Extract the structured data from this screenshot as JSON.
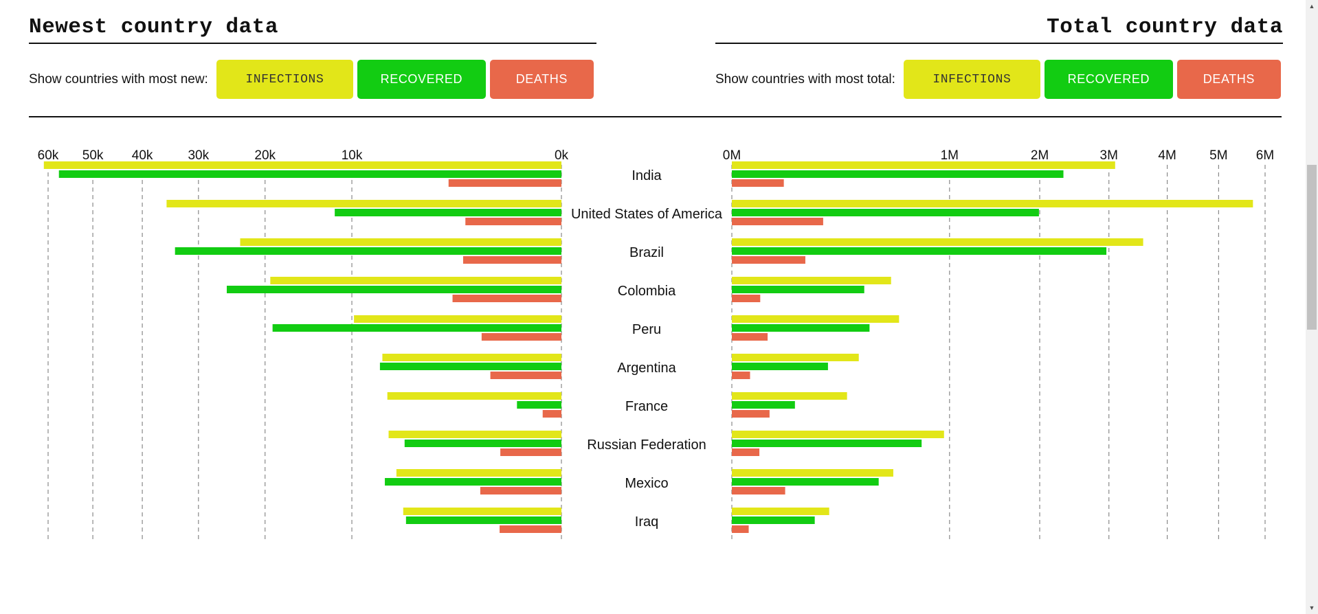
{
  "left_panel": {
    "title": "Newest country data",
    "filter_label": "Show countries with most new:",
    "buttons": {
      "infections": "INFECTIONS",
      "recovered": "RECOVERED",
      "deaths": "DEATHS"
    }
  },
  "right_panel": {
    "title": "Total country data",
    "filter_label": "Show countries with most total:",
    "buttons": {
      "infections": "INFECTIONS",
      "recovered": "RECOVERED",
      "deaths": "DEATHS"
    }
  },
  "colors": {
    "infections": "#e2e619",
    "recovered": "#12cc12",
    "deaths": "#e8684a",
    "grid": "#888888"
  },
  "chart_data": [
    {
      "type": "bar",
      "orientation": "horizontal",
      "direction": "right-to-left",
      "title": "Newest country data",
      "categories": [
        "India",
        "United States of America",
        "Brazil",
        "Colombia",
        "Peru",
        "Argentina",
        "France",
        "Russian Federation",
        "Mexico",
        "Iraq"
      ],
      "series": [
        {
          "name": "INFECTIONS",
          "values": [
            61000,
            35500,
            23500,
            19300,
            9800,
            7300,
            6900,
            6800,
            6200,
            5700
          ]
        },
        {
          "name": "RECOVERED",
          "values": [
            57500,
            11700,
            34000,
            25500,
            19000,
            7500,
            450,
            5600,
            7100,
            5500
          ]
        },
        {
          "name": "DEATHS",
          "values": [
            2900,
            2100,
            2200,
            2700,
            1450,
            1150,
            80,
            850,
            1500,
            870
          ]
        }
      ],
      "xscale": "sqrt",
      "xlim": [
        0,
        60000
      ],
      "ticks": [
        0,
        10000,
        20000,
        30000,
        40000,
        50000,
        60000
      ],
      "tick_labels": [
        "0k",
        "10k",
        "20k",
        "30k",
        "40k",
        "50k",
        "60k"
      ],
      "grid": true
    },
    {
      "type": "bar",
      "orientation": "horizontal",
      "direction": "left-to-right",
      "title": "Total country data",
      "categories": [
        "India",
        "United States of America",
        "Brazil",
        "Colombia",
        "Peru",
        "Argentina",
        "France",
        "Russian Federation",
        "Mexico",
        "Iraq"
      ],
      "series": [
        {
          "name": "INFECTIONS",
          "values": [
            3100000,
            5730000,
            3570000,
            535000,
            590000,
            340000,
            280000,
            950000,
            550000,
            200000
          ]
        },
        {
          "name": "RECOVERED",
          "values": [
            2320000,
            1990000,
            2960000,
            370000,
            400000,
            195000,
            84000,
            760000,
            455000,
            145000
          ]
        },
        {
          "name": "DEATHS",
          "values": [
            57000,
            176000,
            114000,
            17000,
            27000,
            7000,
            30000,
            16000,
            60000,
            6000
          ]
        }
      ],
      "xscale": "sqrt",
      "xlim": [
        0,
        6000000
      ],
      "ticks": [
        0,
        1000000,
        2000000,
        3000000,
        4000000,
        5000000,
        6000000
      ],
      "tick_labels": [
        "0M",
        "1M",
        "2M",
        "3M",
        "4M",
        "5M",
        "6M"
      ],
      "grid": true
    }
  ]
}
